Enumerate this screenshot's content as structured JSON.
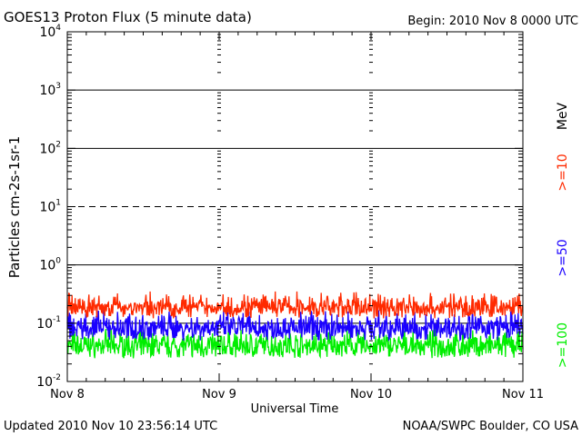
{
  "header": {
    "title": "GOES13 Proton Flux (5 minute data)",
    "begin": "Begin: 2010 Nov 8 0000 UTC"
  },
  "footer": {
    "updated": "Updated 2010 Nov 10 23:56:14 UTC",
    "credit": "NOAA/SWPC Boulder, CO USA"
  },
  "colors": {
    "ge10": "#ff2a00",
    "ge50": "#1a00ff",
    "ge100": "#00ee00"
  },
  "chart_data": {
    "type": "line",
    "title": "GOES13 Proton Flux (5 minute data)",
    "xlabel": "Universal Time",
    "ylabel": "Particles cm-2s-1sr-1",
    "y_scale": "log",
    "ylim": [
      0.01,
      10000
    ],
    "y_ticks": [
      "10-2",
      "10-1",
      "100",
      "101",
      "102",
      "103",
      "104"
    ],
    "x_ticks": [
      "Nov 8",
      "Nov 9",
      "Nov 10",
      "Nov 11"
    ],
    "legend": {
      "unit": "MeV",
      "placement": "right",
      "entries": [
        ">=10",
        ">=50",
        ">=100"
      ]
    },
    "horizontal_lines": [
      {
        "value": 1000,
        "style": "solid"
      },
      {
        "value": 100,
        "style": "solid"
      },
      {
        "value": 10,
        "style": "dashed"
      },
      {
        "value": 1,
        "style": "solid"
      },
      {
        "value": 0.1,
        "style": "solid"
      }
    ],
    "series": [
      {
        "name": ">=10",
        "color": "#ff2a00",
        "typical_range": [
          0.12,
          0.35
        ]
      },
      {
        "name": ">=50",
        "color": "#1a00ff",
        "typical_range": [
          0.05,
          0.17
        ]
      },
      {
        "name": ">=100",
        "color": "#00ee00",
        "typical_range": [
          0.025,
          0.08
        ]
      }
    ]
  }
}
